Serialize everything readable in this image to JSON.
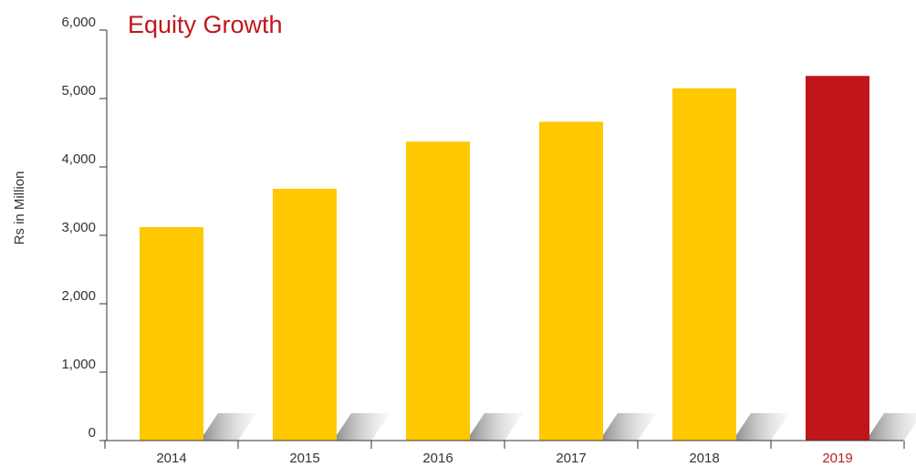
{
  "chart_data": {
    "type": "bar",
    "title": "Equity Growth",
    "ylabel": "Rs in Million",
    "xlabel": "",
    "categories": [
      "2014",
      "2015",
      "2016",
      "2017",
      "2018",
      "2019"
    ],
    "values": [
      3120,
      3680,
      4370,
      4660,
      5150,
      5330
    ],
    "ylim": [
      0,
      6000
    ],
    "yticks": [
      0,
      1000,
      2000,
      3000,
      4000,
      5000,
      6000
    ],
    "ytick_labels": [
      "0",
      "1,000",
      "2,000",
      "3,000",
      "4,000",
      "5,000",
      "6,000"
    ],
    "grid": false,
    "highlight_category": "2019",
    "colors": {
      "bar": "#FFC800",
      "highlight": "#C0161B",
      "title": "#C0161B",
      "highlight_label": "#B52025",
      "axis": "#333333"
    }
  }
}
